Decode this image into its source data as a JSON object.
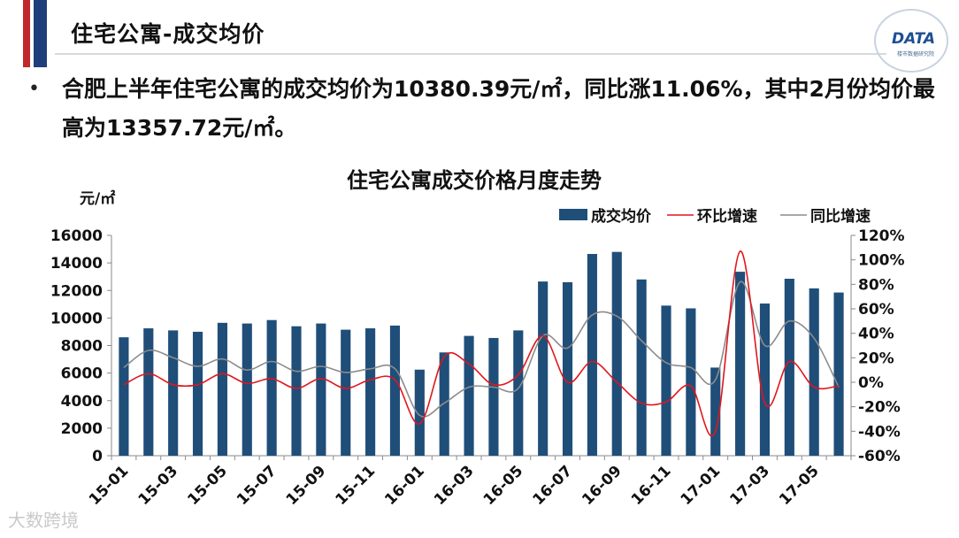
{
  "slide": {
    "title": "住宅公寓-成交均价",
    "bullet_text": "合肥上半年住宅公寓的成交均价为10380.39元/㎡，同比涨11.06%，其中2月份均价最高为13357.72元/㎡。",
    "logo_text": "DATA",
    "logo_sub": "楼市数据研究院",
    "watermark": "大数跨境",
    "colors": {
      "stripe_red": "#c0282d",
      "stripe_blue": "#1f3e7c",
      "bar": "#1f4e79",
      "mom_line": "#e0161c",
      "yoy_line": "#8c8c8c"
    }
  },
  "chart_data": {
    "type": "bar",
    "title": "住宅公寓成交价格月度走势",
    "y_unit": "元/㎡",
    "categories": [
      "15-01",
      "15-02",
      "15-03",
      "15-04",
      "15-05",
      "15-06",
      "15-07",
      "15-08",
      "15-09",
      "15-10",
      "15-11",
      "15-12",
      "16-01",
      "16-02",
      "16-03",
      "16-04",
      "16-05",
      "16-06",
      "16-07",
      "16-08",
      "16-09",
      "16-10",
      "16-11",
      "16-12",
      "17-01",
      "17-02",
      "17-03",
      "17-04",
      "17-05",
      "17-06"
    ],
    "x_tick_labels": [
      "15-01",
      "15-03",
      "15-05",
      "15-07",
      "15-09",
      "15-11",
      "16-01",
      "16-03",
      "16-05",
      "16-07",
      "16-09",
      "16-11",
      "17-01",
      "17-03",
      "17-05"
    ],
    "ylim": [
      0,
      16000
    ],
    "y_ticks": [
      "0",
      "2000",
      "4000",
      "6000",
      "8000",
      "10000",
      "12000",
      "14000",
      "16000"
    ],
    "y2lim": [
      -60,
      120
    ],
    "y2_ticks": [
      "-60%",
      "-40%",
      "-20%",
      "0%",
      "20%",
      "40%",
      "60%",
      "80%",
      "100%",
      "120%"
    ],
    "legend_position": "top-right",
    "grid": false,
    "series": [
      {
        "name": "成交均价",
        "type": "bar",
        "axis": "left",
        "values": [
          8600,
          9250,
          9100,
          9000,
          9650,
          9600,
          9850,
          9400,
          9600,
          9150,
          9250,
          9450,
          6250,
          7500,
          8700,
          8550,
          9100,
          12650,
          12600,
          14650,
          14800,
          12800,
          10900,
          10700,
          6400,
          13357.72,
          11050,
          12850,
          12150,
          11850
        ]
      },
      {
        "name": "环比增速",
        "type": "line",
        "axis": "right",
        "values": [
          -2,
          7,
          -2,
          -2,
          7,
          -1,
          3,
          -5,
          3,
          -5,
          2,
          2,
          -34,
          21,
          15,
          -2,
          6,
          38,
          0,
          17,
          0,
          -17,
          -16,
          -3,
          -40,
          107,
          -17,
          17,
          -4,
          -3
        ]
      },
      {
        "name": "同比增速",
        "type": "line",
        "axis": "right",
        "values": [
          12,
          26,
          20,
          13,
          19,
          10,
          17,
          9,
          13,
          8,
          11,
          11,
          -27,
          -17,
          -4,
          -4,
          -5,
          38,
          28,
          55,
          54,
          34,
          16,
          12,
          2,
          82,
          30,
          50,
          36,
          -4
        ]
      }
    ]
  }
}
